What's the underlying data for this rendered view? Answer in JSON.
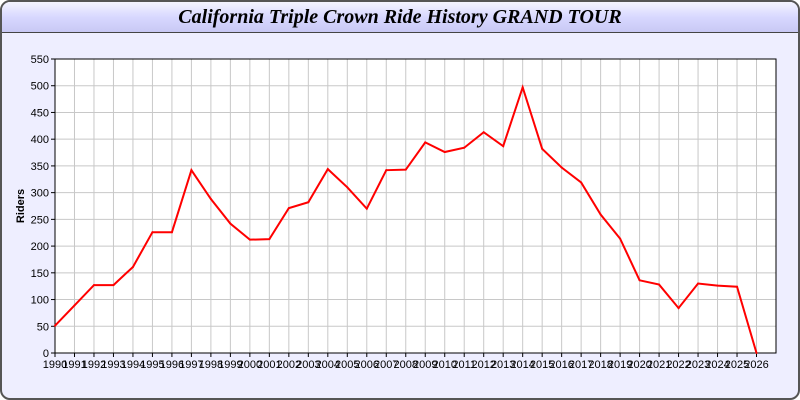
{
  "chart_data": {
    "type": "line",
    "title": "California Triple Crown Ride History GRAND TOUR",
    "xlabel": "",
    "ylabel": "Riders",
    "xlim": [
      1990,
      2027
    ],
    "ylim": [
      0,
      550
    ],
    "yticks": [
      0,
      50,
      100,
      150,
      200,
      250,
      300,
      350,
      400,
      450,
      500,
      550
    ],
    "grid": true,
    "line_color": "#ff0000",
    "x": [
      1990,
      1991,
      1992,
      1993,
      1994,
      1995,
      1996,
      1997,
      1998,
      1999,
      2000,
      2001,
      2002,
      2003,
      2004,
      2005,
      2006,
      2007,
      2008,
      2009,
      2010,
      2011,
      2012,
      2013,
      2014,
      2015,
      2016,
      2017,
      2018,
      2019,
      2020,
      2021,
      2022,
      2023,
      2024,
      2025,
      2026
    ],
    "series": [
      {
        "values": [
          51,
          89,
          127,
          127,
          161,
          226,
          226,
          342,
          288,
          242,
          212,
          213,
          271,
          282,
          344,
          310,
          270,
          342,
          343,
          394,
          376,
          384,
          413,
          387,
          497,
          382,
          347,
          319,
          259,
          214,
          136,
          128,
          84,
          130,
          126,
          124,
          0
        ]
      }
    ]
  }
}
